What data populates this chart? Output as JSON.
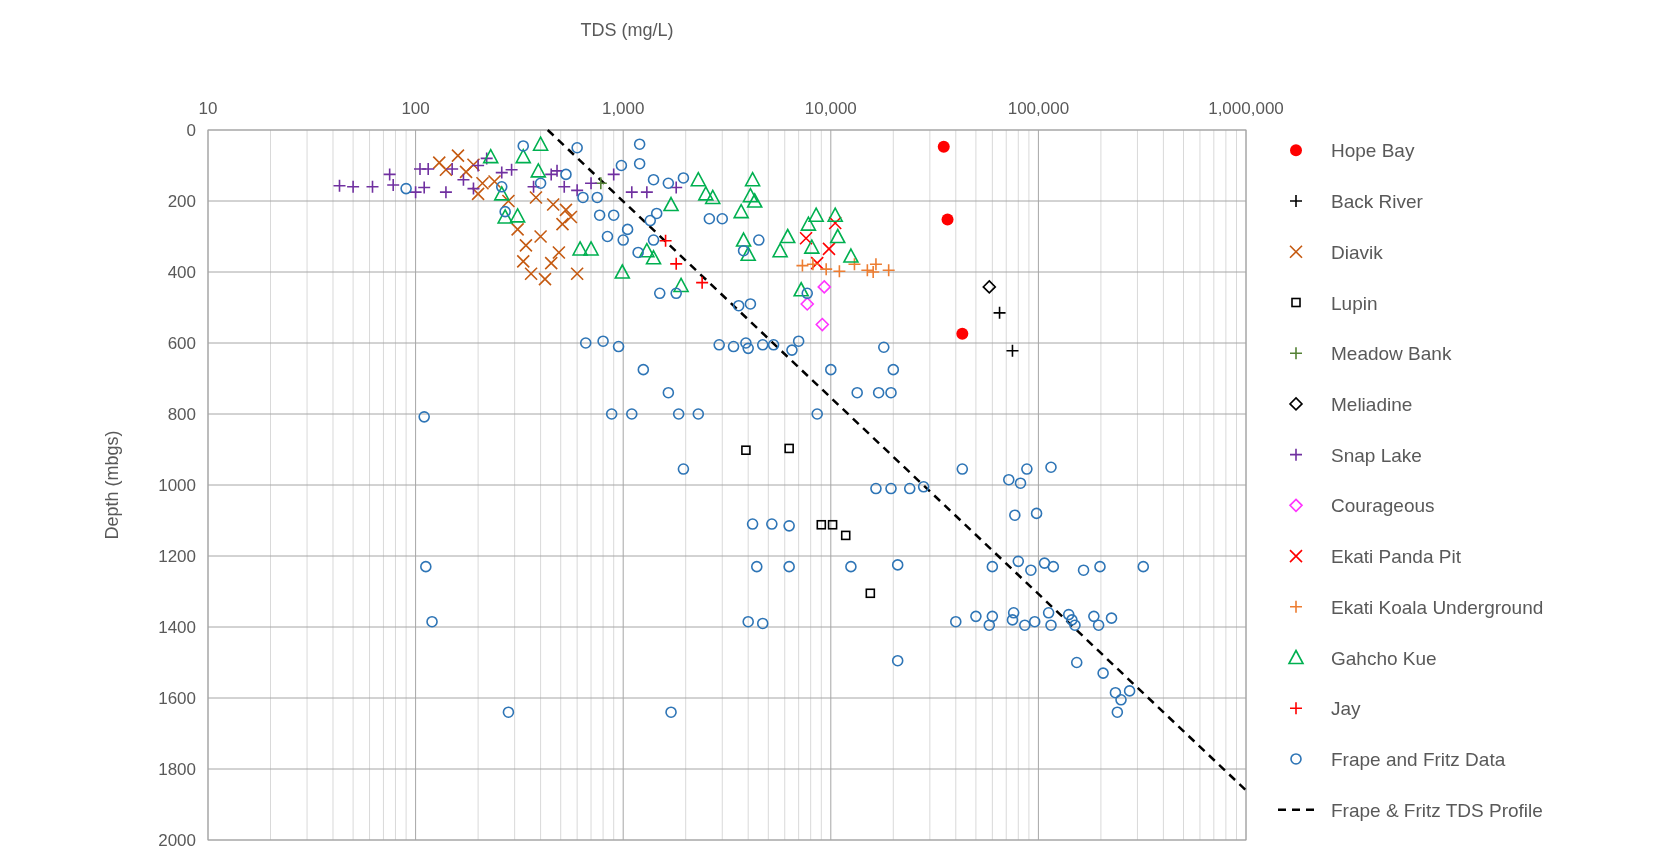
{
  "chart_data": {
    "type": "scatter",
    "xlabel": "TDS (mg/L)",
    "ylabel": "Depth (mbgs)",
    "log": "x",
    "xlim": [
      10,
      1000000
    ],
    "xticks": [
      10,
      100,
      {
        "value": 1000,
        "label": "1,000"
      },
      {
        "value": 10000,
        "label": "10,000"
      },
      {
        "value": 100000,
        "label": "100,000"
      },
      {
        "value": 1000000,
        "label": "1,000,000"
      }
    ],
    "ylim": [
      2000,
      0
    ],
    "yticks": [
      0,
      200,
      400,
      600,
      800,
      1000,
      1200,
      1400,
      1600,
      1800,
      2000
    ],
    "grid": true,
    "legend": "right",
    "series": [
      {
        "name": "Hope Bay",
        "color": "#ff0000",
        "marker": "circle",
        "x": [
          35000,
          36500,
          43000
        ],
        "values": [
          47,
          252,
          574
        ]
      },
      {
        "name": "Back River",
        "color": "#000000",
        "marker": "cross",
        "x": [
          65000,
          75000
        ],
        "values": [
          515,
          622
        ]
      },
      {
        "name": "Diavik",
        "color": "#c55a11",
        "marker": "x",
        "x": [
          130,
          140,
          160,
          175,
          190,
          200,
          210,
          240,
          280,
          310,
          330,
          340,
          360,
          380,
          400,
          420,
          450,
          460,
          490,
          510,
          530,
          560,
          600
        ],
        "values": [
          92,
          112,
          72,
          118,
          98,
          180,
          150,
          145,
          200,
          280,
          370,
          325,
          405,
          190,
          300,
          420,
          375,
          210,
          345,
          265,
          225,
          245,
          405
        ]
      },
      {
        "name": "Lupin",
        "color": "#000000",
        "marker": "square",
        "x": [
          3900,
          6300,
          9000,
          10200,
          11800,
          15500
        ],
        "values": [
          902,
          897,
          1112,
          1112,
          1142,
          1305
        ]
      },
      {
        "name": "Meadow Bank",
        "color": "#548235",
        "marker": "cross",
        "x": [
          780
        ],
        "values": [
          150
        ]
      },
      {
        "name": "Meliadine",
        "color": "#000000",
        "marker": "diamond",
        "x": [
          58000
        ],
        "values": [
          442
        ]
      },
      {
        "name": "Snap Lake",
        "color": "#7030a0",
        "marker": "cross",
        "x": [
          43,
          50,
          62,
          75,
          78,
          100,
          105,
          110,
          115,
          140,
          150,
          170,
          190,
          200,
          220,
          260,
          290,
          370,
          450,
          480,
          520,
          600,
          700,
          900,
          1100,
          1300,
          1800
        ],
        "values": [
          157,
          160,
          160,
          125,
          155,
          175,
          110,
          162,
          110,
          175,
          110,
          140,
          165,
          100,
          80,
          120,
          112,
          160,
          125,
          115,
          160,
          170,
          150,
          125,
          175,
          175,
          162
        ]
      },
      {
        "name": "Courageous",
        "color": "#ff33ff",
        "marker": "diamond",
        "x": [
          9300,
          7700,
          9100
        ],
        "values": [
          442,
          490,
          548
        ]
      },
      {
        "name": "Ekati Panda Pit",
        "color": "#ff0000",
        "marker": "x",
        "x": [
          7600,
          9800,
          10500,
          8600
        ],
        "values": [
          305,
          335,
          262,
          375
        ]
      },
      {
        "name": "Ekati Koala Underground",
        "color": "#ed7d31",
        "marker": "cross",
        "x": [
          7300,
          8200,
          9500,
          11000,
          13000,
          15000,
          16500,
          19000,
          16000
        ],
        "values": [
          382,
          378,
          392,
          398,
          378,
          395,
          378,
          395,
          400
        ]
      },
      {
        "name": "Gahcho Kue",
        "color": "#00b050",
        "marker": "triangle",
        "x": [
          230,
          260,
          270,
          310,
          330,
          390,
          400,
          620,
          700,
          990,
          1300,
          1400,
          1900,
          1700,
          2300,
          2500,
          2700,
          3700,
          3800,
          4000,
          4100,
          4200,
          4300,
          5700,
          6200,
          7200,
          7800,
          8100,
          8500,
          10500,
          10800,
          12500
        ],
        "values": [
          75,
          180,
          245,
          242,
          75,
          115,
          40,
          335,
          335,
          400,
          340,
          360,
          438,
          210,
          140,
          180,
          190,
          230,
          310,
          350,
          185,
          140,
          200,
          340,
          300,
          450,
          265,
          330,
          240,
          240,
          300,
          355
        ]
      },
      {
        "name": "Jay",
        "color": "#ff0000",
        "marker": "cross",
        "x": [
          1600,
          1800,
          2400
        ],
        "values": [
          312,
          377,
          430
        ]
      },
      {
        "name": "Frape and Fritz Data",
        "color": "#2e75b6",
        "marker": "circle-open",
        "x": [
          90,
          110,
          112,
          120,
          280,
          260,
          270,
          330,
          400,
          530,
          600,
          640,
          660,
          750,
          770,
          800,
          840,
          880,
          900,
          950,
          980,
          1000,
          1050,
          1100,
          1180,
          1200,
          1200,
          1250,
          1350,
          1400,
          1400,
          1450,
          1500,
          1650,
          1650,
          1700,
          1800,
          1850,
          1950,
          1950,
          2300,
          2600,
          2900,
          3000,
          3400,
          3600,
          3800,
          3900,
          4000,
          4000,
          4100,
          4200,
          4400,
          4500,
          4700,
          4700,
          5200,
          5300,
          6300,
          6300,
          6500,
          7000,
          7700,
          8600,
          10000,
          12500,
          13400,
          16500,
          17000,
          18000,
          19500,
          19500,
          20000,
          21000,
          21000,
          24000,
          28000,
          40000,
          43000,
          50000,
          58000,
          60000,
          60000,
          72000,
          75000,
          76000,
          77000,
          80000,
          82000,
          86000,
          88000,
          92000,
          96000,
          98000,
          107000,
          112000,
          115000,
          115000,
          118000,
          140000,
          145000,
          150000,
          153000,
          165000,
          185000,
          195000,
          198000,
          205000,
          225000,
          235000,
          240000,
          250000,
          275000,
          320000
        ],
        "values": [
          165,
          808,
          1230,
          1385,
          1640,
          160,
          230,
          45,
          150,
          125,
          50,
          190,
          600,
          190,
          240,
          595,
          300,
          800,
          240,
          610,
          100,
          310,
          280,
          800,
          345,
          40,
          95,
          675,
          255,
          310,
          140,
          235,
          460,
          150,
          740,
          1640,
          460,
          800,
          135,
          955,
          800,
          250,
          605,
          250,
          610,
          495,
          340,
          600,
          1385,
          615,
          490,
          1110,
          1230,
          310,
          605,
          1390,
          1110,
          605,
          1115,
          1230,
          620,
          595,
          460,
          800,
          675,
          1230,
          740,
          1010,
          740,
          612,
          1010,
          740,
          675,
          1225,
          1495,
          1010,
          1005,
          1385,
          955,
          1370,
          1395,
          1370,
          1230,
          985,
          1380,
          1360,
          1085,
          1215,
          995,
          1395,
          955,
          1240,
          1385,
          1080,
          1220,
          1360,
          1395,
          950,
          1230,
          1365,
          1380,
          1395,
          1500,
          1240,
          1370,
          1395,
          1230,
          1530,
          1375,
          1585,
          1640,
          1605,
          1580,
          1230
        ]
      },
      {
        "name": "Frape & Fritz TDS Profile",
        "type": "line",
        "color": "#000000",
        "marker": "none",
        "line_style": "dashed",
        "x": [
          433,
          1000000
        ],
        "values": [
          0,
          1860
        ]
      }
    ]
  }
}
